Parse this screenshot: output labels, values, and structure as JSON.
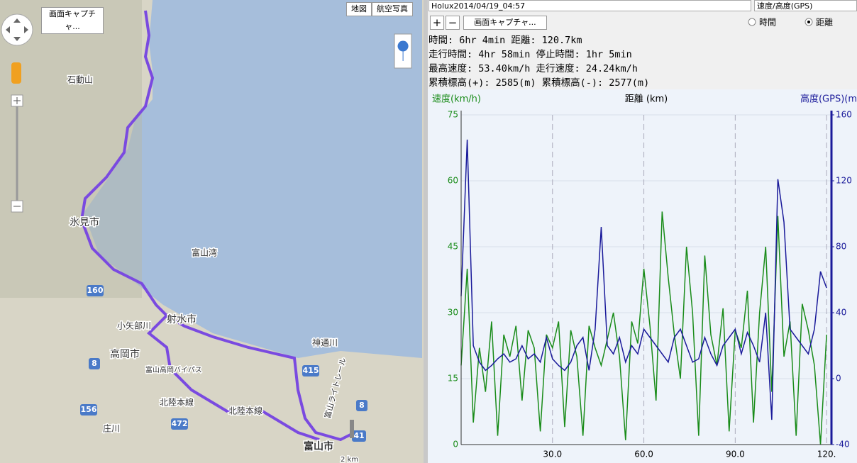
{
  "map": {
    "capture_button": "画面キャプチャ...",
    "map_button": "地図",
    "satellite_button": "航空写真",
    "labels": [
      "石動山",
      "氷見市",
      "富山湾",
      "射水市",
      "高岡市",
      "富山市",
      "神通川",
      "北陸本線",
      "北陸本線",
      "小矢部川",
      "庄川",
      "富山高岡バイパス",
      "富山ライトレール",
      "2 km"
    ],
    "roads": [
      "160",
      "415",
      "8",
      "472",
      "156",
      "8",
      "41"
    ]
  },
  "toolbar": {
    "track": "Holux2014/04/19_04:57",
    "graph_mode": "速度/高度(GPS)",
    "capture_button": "画面キャプチャ...",
    "radio_time": "時間",
    "radio_distance": "距離"
  },
  "stats": [
    "時間: 6hr 4min 距離: 120.7km",
    "走行時間: 4hr 58min 停止時間: 1hr 5min",
    "最高速度: 53.40km/h 走行速度: 24.24km/h",
    "累積標高(+): 2585(m) 累積標高(-): 2577(m)"
  ],
  "chart_data": {
    "type": "line",
    "xlabel": "距離 (km)",
    "ylabel": "速度(km/h)",
    "y2label": "高度(GPS)(m",
    "x": [
      0,
      2,
      4,
      6,
      8,
      10,
      12,
      14,
      16,
      18,
      20,
      22,
      24,
      26,
      28,
      30,
      32,
      34,
      36,
      38,
      40,
      42,
      44,
      46,
      48,
      50,
      52,
      54,
      56,
      58,
      60,
      62,
      64,
      66,
      68,
      70,
      72,
      74,
      76,
      78,
      80,
      82,
      84,
      86,
      88,
      90,
      92,
      94,
      96,
      98,
      100,
      102,
      104,
      106,
      108,
      110,
      112,
      114,
      116,
      118,
      120
    ],
    "series": [
      {
        "color": "#1a8c1a",
        "values": [
          18,
          40,
          5,
          22,
          12,
          28,
          2,
          25,
          20,
          27,
          10,
          26,
          22,
          3,
          25,
          22,
          28,
          4,
          26,
          20,
          2,
          27,
          22,
          18,
          24,
          30,
          20,
          1,
          28,
          23,
          40,
          27,
          10,
          53,
          38,
          25,
          15,
          45,
          30,
          2,
          43,
          25,
          18,
          31,
          3,
          26,
          22,
          35,
          5,
          30,
          45,
          12,
          52,
          20,
          28,
          2,
          32,
          26,
          18,
          0,
          25
        ]
      },
      {
        "color": "#1a1a9a",
        "axis": "y2",
        "values": [
          50,
          145,
          20,
          10,
          5,
          8,
          12,
          15,
          10,
          12,
          20,
          12,
          15,
          10,
          25,
          12,
          8,
          5,
          10,
          20,
          25,
          5,
          30,
          92,
          20,
          15,
          25,
          10,
          20,
          15,
          30,
          25,
          20,
          15,
          10,
          25,
          30,
          20,
          10,
          12,
          25,
          15,
          8,
          20,
          25,
          30,
          15,
          28,
          20,
          10,
          40,
          -25,
          121,
          95,
          30,
          25,
          20,
          15,
          30,
          65,
          55
        ]
      }
    ],
    "xlim": [
      0,
      121.6
    ],
    "ylim": [
      0,
      75
    ],
    "y2lim": [
      -40,
      160
    ],
    "xticks": [
      {
        "value": 30,
        "label": "30.0"
      },
      {
        "value": 60,
        "label": "60.0"
      },
      {
        "value": 90,
        "label": "90.0"
      },
      {
        "value": 120,
        "label": "120."
      }
    ],
    "yticks": [
      0,
      15,
      30,
      45,
      60,
      75
    ],
    "y2ticks": [
      -40,
      0,
      40,
      80,
      120,
      160
    ],
    "grid": true
  }
}
